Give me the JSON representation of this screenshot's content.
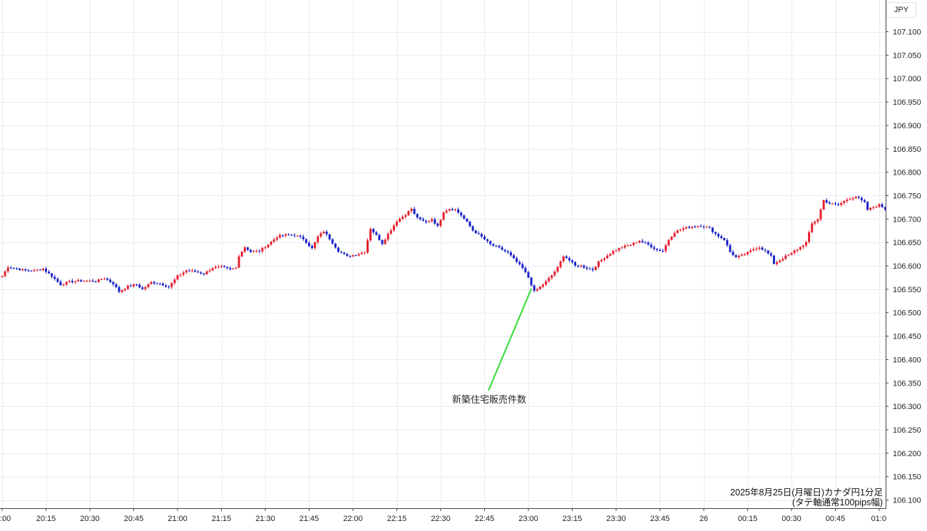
{
  "chart_data": {
    "type": "candlestick",
    "currency_label": "JPY",
    "colors": {
      "up": "#e5202e",
      "down": "#1a22c8",
      "annotation_line": "#33dd33",
      "grid": "#e6edf2",
      "axis": "#444444",
      "background": "#ffffff"
    },
    "y_ticks": [
      107.1,
      107.05,
      107.0,
      106.95,
      106.9,
      106.85,
      106.8,
      106.75,
      106.7,
      106.65,
      106.6,
      106.55,
      106.5,
      106.45,
      106.4,
      106.35,
      106.3,
      106.25,
      106.2,
      106.15,
      106.1
    ],
    "y_tick_labels": [
      "107.100",
      "107.050",
      "107.000",
      "106.950",
      "106.900",
      "106.850",
      "106.800",
      "106.750",
      "106.700",
      "106.650",
      "106.600",
      "106.550",
      "106.500",
      "106.450",
      "106.400",
      "106.350",
      "106.300",
      "106.250",
      "106.200",
      "106.150",
      "106.100"
    ],
    "ylim": [
      106.085,
      107.145
    ],
    "x_ticks": [
      {
        "minute": 0,
        "label": ":00"
      },
      {
        "minute": 15,
        "label": "20:15"
      },
      {
        "minute": 30,
        "label": "20:30"
      },
      {
        "minute": 45,
        "label": "20:45"
      },
      {
        "minute": 60,
        "label": "21:00"
      },
      {
        "minute": 75,
        "label": "21:15"
      },
      {
        "minute": 90,
        "label": "21:30"
      },
      {
        "minute": 105,
        "label": "21:45"
      },
      {
        "minute": 120,
        "label": "22:00"
      },
      {
        "minute": 135,
        "label": "22:15"
      },
      {
        "minute": 150,
        "label": "22:30"
      },
      {
        "minute": 165,
        "label": "22:45"
      },
      {
        "minute": 180,
        "label": "23:00"
      },
      {
        "minute": 195,
        "label": "23:15"
      },
      {
        "minute": 210,
        "label": "23:30"
      },
      {
        "minute": 225,
        "label": "23:45"
      },
      {
        "minute": 240,
        "label": "26"
      },
      {
        "minute": 255,
        "label": "00:15"
      },
      {
        "minute": 270,
        "label": "00:30"
      },
      {
        "minute": 285,
        "label": "00:45"
      },
      {
        "minute": 300,
        "label": "01:0"
      }
    ],
    "xlim": [
      0,
      302
    ],
    "close_path": [
      [
        0,
        106.578
      ],
      [
        2,
        106.598
      ],
      [
        5,
        106.594
      ],
      [
        8,
        106.59
      ],
      [
        11,
        106.59
      ],
      [
        14,
        106.594
      ],
      [
        17,
        106.578
      ],
      [
        20,
        106.56
      ],
      [
        23,
        106.566
      ],
      [
        26,
        106.568
      ],
      [
        29,
        106.568
      ],
      [
        32,
        106.567
      ],
      [
        35,
        106.574
      ],
      [
        38,
        106.562
      ],
      [
        40,
        106.545
      ],
      [
        43,
        106.556
      ],
      [
        46,
        106.56
      ],
      [
        48,
        106.55
      ],
      [
        51,
        106.565
      ],
      [
        54,
        106.562
      ],
      [
        57,
        106.555
      ],
      [
        60,
        106.578
      ],
      [
        63,
        106.59
      ],
      [
        66,
        106.588
      ],
      [
        69,
        106.583
      ],
      [
        72,
        106.596
      ],
      [
        75,
        106.598
      ],
      [
        78,
        106.592
      ],
      [
        80,
        106.596
      ],
      [
        81,
        106.622
      ],
      [
        83,
        106.64
      ],
      [
        85,
        106.63
      ],
      [
        88,
        106.632
      ],
      [
        91,
        106.646
      ],
      [
        94,
        106.662
      ],
      [
        97,
        106.666
      ],
      [
        100,
        106.666
      ],
      [
        103,
        106.658
      ],
      [
        106,
        106.637
      ],
      [
        108,
        106.662
      ],
      [
        110,
        106.674
      ],
      [
        112,
        106.658
      ],
      [
        115,
        106.632
      ],
      [
        118,
        106.62
      ],
      [
        121,
        106.624
      ],
      [
        124,
        106.63
      ],
      [
        126,
        106.68
      ],
      [
        128,
        106.665
      ],
      [
        130,
        106.648
      ],
      [
        132,
        106.668
      ],
      [
        135,
        106.696
      ],
      [
        138,
        106.71
      ],
      [
        140,
        106.722
      ],
      [
        141,
        106.71
      ],
      [
        143,
        106.698
      ],
      [
        145,
        106.693
      ],
      [
        147,
        106.7
      ],
      [
        149,
        106.684
      ],
      [
        151,
        106.716
      ],
      [
        153,
        106.722
      ],
      [
        155,
        106.72
      ],
      [
        157,
        106.708
      ],
      [
        159,
        106.693
      ],
      [
        161,
        106.676
      ],
      [
        164,
        106.662
      ],
      [
        167,
        106.646
      ],
      [
        170,
        106.638
      ],
      [
        173,
        106.628
      ],
      [
        176,
        106.608
      ],
      [
        178,
        106.595
      ],
      [
        180,
        106.575
      ],
      [
        182,
        106.545
      ],
      [
        184,
        106.555
      ],
      [
        186,
        106.566
      ],
      [
        188,
        106.58
      ],
      [
        190,
        106.596
      ],
      [
        192,
        106.622
      ],
      [
        194,
        106.612
      ],
      [
        196,
        106.6
      ],
      [
        198,
        106.6
      ],
      [
        200,
        106.595
      ],
      [
        202,
        106.592
      ],
      [
        204,
        106.608
      ],
      [
        206,
        106.618
      ],
      [
        209,
        106.631
      ],
      [
        212,
        106.64
      ],
      [
        215,
        106.645
      ],
      [
        218,
        106.654
      ],
      [
        221,
        106.645
      ],
      [
        224,
        106.634
      ],
      [
        226,
        106.632
      ],
      [
        228,
        106.656
      ],
      [
        230,
        106.672
      ],
      [
        233,
        106.68
      ],
      [
        236,
        106.684
      ],
      [
        239,
        106.686
      ],
      [
        242,
        106.68
      ],
      [
        244,
        106.668
      ],
      [
        247,
        106.656
      ],
      [
        249,
        106.63
      ],
      [
        251,
        106.618
      ],
      [
        253,
        106.622
      ],
      [
        255,
        106.628
      ],
      [
        257,
        106.636
      ],
      [
        259,
        106.64
      ],
      [
        261,
        106.632
      ],
      [
        263,
        106.62
      ],
      [
        264,
        106.605
      ],
      [
        266,
        106.612
      ],
      [
        268,
        106.62
      ],
      [
        270,
        106.626
      ],
      [
        271,
        106.632
      ],
      [
        273,
        106.64
      ],
      [
        275,
        106.65
      ],
      [
        277,
        106.69
      ],
      [
        279,
        106.7
      ],
      [
        281,
        106.74
      ],
      [
        283,
        106.733
      ],
      [
        286,
        106.73
      ],
      [
        289,
        106.742
      ],
      [
        292,
        106.748
      ],
      [
        295,
        106.735
      ],
      [
        296,
        106.72
      ],
      [
        298,
        106.725
      ],
      [
        300,
        106.73
      ],
      [
        302,
        106.722
      ]
    ],
    "annotation": {
      "text": "新築住宅販売件数",
      "minute": 181,
      "price": 106.551
    },
    "caption_line1": "2025年8月25日(月曜日)カナダ円1分足",
    "caption_line2": "(タテ軸通常100pips幅)"
  }
}
